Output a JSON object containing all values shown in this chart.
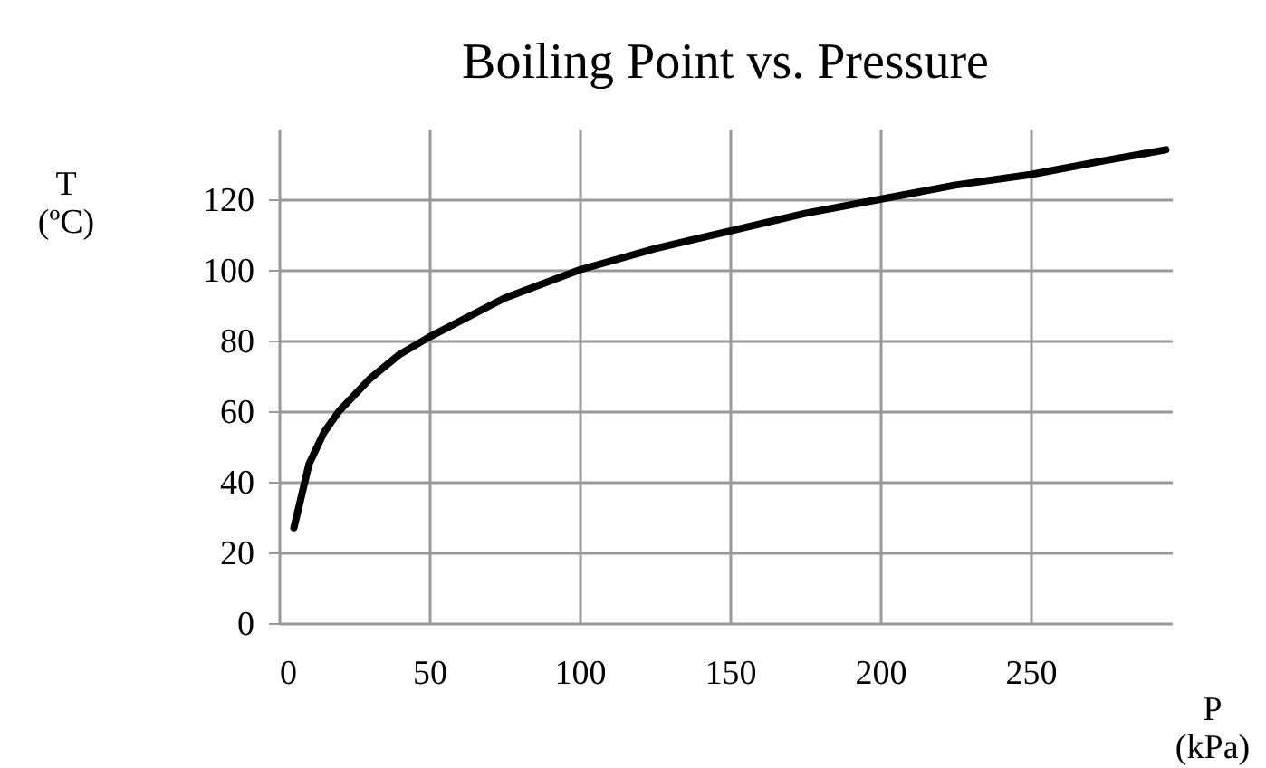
{
  "chart_data": {
    "type": "line",
    "title": "Boiling Point vs. Pressure",
    "xlabel": "P (kPa)",
    "ylabel": "T (ºC)",
    "x": [
      5,
      10,
      15,
      20,
      30,
      40,
      50,
      75,
      100,
      125,
      150,
      175,
      200,
      225,
      250,
      275,
      295
    ],
    "series": [
      {
        "color": "#000000",
        "values": [
          27,
          45,
          54,
          60,
          69,
          76,
          81,
          92,
          100,
          106,
          111,
          116,
          120,
          124,
          127,
          131,
          134
        ]
      }
    ],
    "xlim": [
      0,
      297
    ],
    "ylim": [
      0,
      140
    ],
    "xticks": [
      0,
      50,
      100,
      150,
      200,
      250
    ],
    "yticks": [
      0,
      20,
      40,
      60,
      80,
      100,
      120
    ],
    "grid": true
  }
}
